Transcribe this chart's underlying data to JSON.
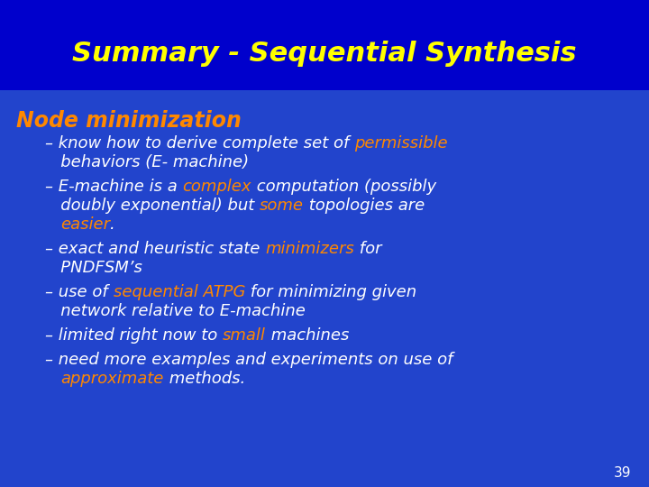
{
  "bg_top": "#0000cc",
  "bg_bottom": "#2233bb",
  "title": "Summary - Sequential Synthesis",
  "title_color": "#ffff00",
  "title_fontsize": 22,
  "section_text": "Node minimization",
  "section_color": "#ff8800",
  "section_fontsize": 17,
  "white": "#ffffff",
  "orange": "#ff8800",
  "bullet_fontsize": 13,
  "page_num_fontsize": 11,
  "page_number": "39"
}
